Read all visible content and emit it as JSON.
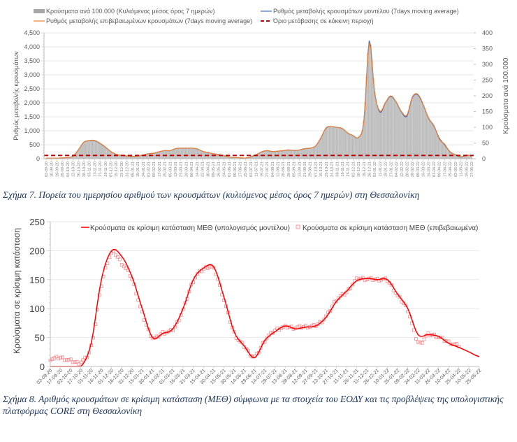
{
  "captions": {
    "fig7": "Σχήμα 7. Πορεία του ημερησίου αριθμού των κρουσμάτων (κυλιόμενος μέσος όρος 7 ημερών) στη Θεσσαλονίκη",
    "fig8": "Σχήμα 8. Αριθμός κρουσμάτων σε κρίσιμη κατάσταση (ΜΕΘ) σύμφωνα με τα στοιχεία του ΕΟΔΥ και τις προβλέψεις της υπολογιστικής πλατφόρμας CORE στη Θεσσαλονίκη"
  },
  "chart_data": [
    {
      "type": "bar",
      "title": "",
      "ylabel": "Ρυθμός μεταβολής κρουσμάτων",
      "y2label": "Κρούσματα ανά 100.000",
      "ylim": [
        0,
        4500
      ],
      "y2lim": [
        0,
        400
      ],
      "yticks": [
        "0",
        "500",
        "1,000",
        "1,500",
        "2,000",
        "2,500",
        "3,000",
        "3,500",
        "4,000",
        "4,500"
      ],
      "y2ticks": [
        "0",
        "50",
        "100",
        "150",
        "200",
        "250",
        "300",
        "350",
        "400"
      ],
      "grid": true,
      "legend_position": "top",
      "legend": [
        {
          "name": "Κρούσματα ανά 100.000 (Κυλιόμενος μέσος όρος 7 ημερών)",
          "style": "bar",
          "color": "#bfbfbf"
        },
        {
          "name": "Ρυθμός μεταβολής κρουσμάτων μοντέλου (7days moving average)",
          "style": "line",
          "color": "#4472c4"
        },
        {
          "name": "Ρυθμός μεταβολής επιβεβαιωμένων κρουσμάτων (7days moving average)",
          "style": "line",
          "color": "#ed7d31"
        },
        {
          "name": "Όριο μετάβασης σε κόκκινη περιοχή",
          "style": "dashed",
          "color": "#c00000"
        }
      ],
      "categories": [
        "02-09-20",
        "10-09-20",
        "18-09-20",
        "26-09-20",
        "04-10-20",
        "12-10-20",
        "20-10-20",
        "28-10-20",
        "05-11-20",
        "13-11-20",
        "21-11-20",
        "29-11-20",
        "07-12-20",
        "15-12-20",
        "23-12-20",
        "31-12-20",
        "08-01-21",
        "16-01-21",
        "24-01-21",
        "01-02-21",
        "09-02-21",
        "17-02-21",
        "25-02-21",
        "05-03-21",
        "13-03-21",
        "21-03-21",
        "29-03-21",
        "06-04-21",
        "14-04-21",
        "22-04-21",
        "30-04-21",
        "08-05-21",
        "16-05-21",
        "24-05-21",
        "01-06-21",
        "09-06-21",
        "17-06-21",
        "25-06-21",
        "03-07-21",
        "11-07-21",
        "19-07-21",
        "27-07-21",
        "04-08-21",
        "12-08-21",
        "20-08-21",
        "28-08-21",
        "05-09-21",
        "13-09-21",
        "21-09-21",
        "29-09-21",
        "07-10-21",
        "15-10-21",
        "23-10-21",
        "31-10-21",
        "08-11-21",
        "16-11-21",
        "24-11-21",
        "02-12-21",
        "10-12-21",
        "18-12-21",
        "26-12-21",
        "03-01-22",
        "11-01-22",
        "19-01-22",
        "27-01-22",
        "04-02-22",
        "12-02-22",
        "20-02-22",
        "28-02-22",
        "08-03-22",
        "16-03-22",
        "24-03-22",
        "01-04-22",
        "09-04-22",
        "17-04-22",
        "25-04-22",
        "03-05-22",
        "11-05-22",
        "19-05-22",
        "27-05-22"
      ],
      "series": [
        {
          "name": "Κρούσματα ανά 100.000 (Κυλιόμενος μέσος όρος 7 ημερών)",
          "axis": "right",
          "values": [
            2,
            2,
            2,
            3,
            4,
            8,
            28,
            52,
            57,
            58,
            49,
            37,
            23,
            14,
            11,
            9,
            7,
            9,
            12,
            16,
            18,
            22,
            26,
            26,
            32,
            34,
            34,
            34,
            32,
            24,
            20,
            16,
            14,
            10,
            6,
            4,
            3,
            2,
            6,
            13,
            22,
            26,
            23,
            24,
            26,
            28,
            27,
            28,
            32,
            34,
            40,
            66,
            98,
            102,
            100,
            96,
            82,
            74,
            68,
            120,
            375,
            212,
            150,
            178,
            198,
            180,
            148,
            140,
            195,
            204,
            172,
            130,
            104,
            66,
            44,
            22,
            13,
            5,
            12,
            10
          ]
        },
        {
          "name": "Ρυθμός μεταβολής κρουσμάτων μοντέλου (7days moving average)",
          "axis": "left",
          "values": [
            20,
            20,
            22,
            30,
            45,
            95,
            320,
            590,
            645,
            650,
            550,
            415,
            260,
            160,
            120,
            100,
            80,
            100,
            135,
            180,
            200,
            250,
            290,
            290,
            360,
            380,
            380,
            380,
            355,
            270,
            225,
            180,
            155,
            110,
            65,
            45,
            35,
            25,
            70,
            145,
            245,
            290,
            260,
            270,
            290,
            315,
            300,
            315,
            360,
            380,
            450,
            740,
            1100,
            1145,
            1120,
            1080,
            920,
            830,
            765,
            1350,
            4210,
            2380,
            1660,
            2000,
            2230,
            2020,
            1660,
            1520,
            2190,
            2290,
            1930,
            1460,
            1170,
            740,
            495,
            250,
            145,
            60,
            130,
            110
          ]
        },
        {
          "name": "Ρυθμός μεταβολής επιβεβαιωμένων κρουσμάτων (7days moving average)",
          "axis": "left",
          "values": [
            20,
            20,
            22,
            30,
            45,
            95,
            320,
            590,
            650,
            655,
            555,
            420,
            260,
            160,
            120,
            100,
            80,
            100,
            135,
            180,
            200,
            250,
            290,
            290,
            360,
            380,
            380,
            380,
            355,
            270,
            225,
            180,
            155,
            110,
            65,
            45,
            35,
            25,
            70,
            145,
            245,
            290,
            260,
            270,
            290,
            315,
            300,
            315,
            360,
            380,
            450,
            740,
            1110,
            1150,
            1120,
            1080,
            920,
            830,
            765,
            1320,
            4130,
            2340,
            1700,
            2010,
            2250,
            2030,
            1680,
            1560,
            2210,
            2310,
            1950,
            1440,
            1190,
            700,
            520,
            240,
            150,
            70,
            125,
            100
          ]
        },
        {
          "name": "Όριο μετάβασης σε κόκκινη περιοχή",
          "axis": "left",
          "values": "constant",
          "value": 120
        }
      ]
    },
    {
      "type": "line",
      "title": "",
      "ylabel": "Κρούσματα σε κρίσιμη κατάσταση",
      "ylim": [
        0,
        250
      ],
      "yticks": [
        "0",
        "50",
        "100",
        "150",
        "200",
        "250"
      ],
      "grid": true,
      "legend_position": "top",
      "legend": [
        {
          "name": "Κρούσματα σε κρίσιμη κατάσταση ΜΕΘ (υπολογισμός μοντέλου)",
          "style": "line",
          "color": "#ff0000"
        },
        {
          "name": "Κρούσματα σε κρίσιμη κατάσταση ΜΕΘ (επιβεβαιωμένα)",
          "style": "square-marker",
          "color": "#ff7c80"
        }
      ],
      "categories": [
        "02-09-20",
        "17-09-20",
        "02-10-20",
        "17-10-20",
        "01-11-20",
        "16-11-20",
        "01-12-20",
        "16-12-20",
        "31-12-20",
        "15-01-21",
        "30-01-21",
        "14-02-21",
        "01-03-21",
        "16-03-21",
        "31-03-21",
        "15-04-21",
        "30-04-21",
        "15-05-21",
        "30-05-21",
        "14-06-21",
        "29-06-21",
        "14-07-21",
        "29-07-21",
        "13-08-21",
        "28-08-21",
        "12-09-21",
        "27-09-21",
        "12-10-21",
        "27-10-21",
        "11-11-21",
        "26-11-21",
        "11-12-21",
        "26-12-21",
        "10-01-22",
        "25-01-22",
        "09-02-22",
        "24-02-22",
        "11-03-22",
        "26-03-22",
        "10-04-22",
        "25-04-22",
        "10-05-22",
        "25-05-22"
      ],
      "series": [
        {
          "name": "Κρούσματα σε κρίσιμη κατάσταση ΜΕΘ (υπολογισμός μοντέλου)",
          "values": [
            0,
            0,
            0,
            0,
            40,
            150,
            200,
            190,
            155,
            100,
            50,
            57,
            65,
            100,
            150,
            170,
            172,
            120,
            60,
            35,
            15,
            45,
            60,
            70,
            65,
            68,
            70,
            85,
            112,
            130,
            148,
            152,
            150,
            150,
            125,
            100,
            55,
            55,
            52,
            40,
            33,
            25,
            17
          ]
        },
        {
          "name": "Κρούσματα σε κρίσιμη κατάσταση ΜΕΘ (επιβεβαιωμένα)",
          "values": [
            13,
            15,
            10,
            8,
            35,
            140,
            195,
            178,
            150,
            92,
            50,
            58,
            64,
            98,
            148,
            168,
            168,
            115,
            58,
            35,
            17,
            45,
            62,
            68,
            67,
            69,
            71,
            86,
            115,
            128,
            150,
            151,
            150,
            148,
            122,
            97,
            42,
            55,
            51,
            42,
            36,
            null,
            null
          ]
        }
      ]
    }
  ]
}
